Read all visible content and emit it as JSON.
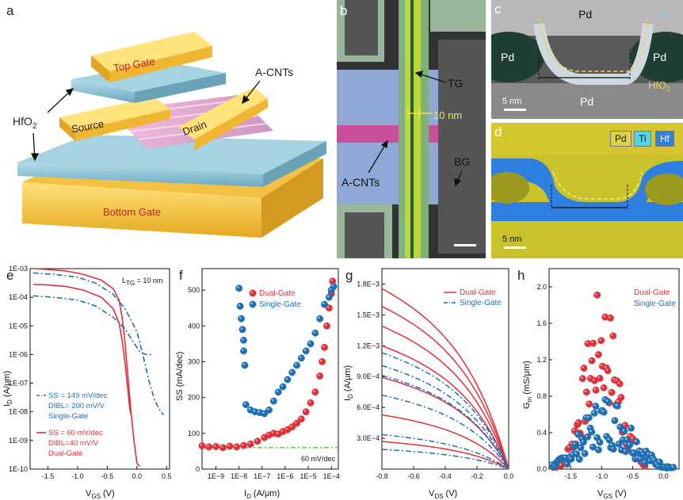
{
  "panel_letters": {
    "a": "a",
    "b": "b",
    "c": "c",
    "d": "d",
    "e": "e",
    "f": "f",
    "g": "g",
    "h": "h"
  },
  "panel_a": {
    "top_gate": "Top Gate",
    "source": "Source",
    "drain": "Drain",
    "bottom_gate": "Bottom Gate",
    "acnts": "A-CNTs",
    "hfo2_main": "HfO",
    "hfo2_sub": "2"
  },
  "panel_b": {
    "tg": "TG",
    "gap": "10 nm",
    "acnts": "A-CNTs",
    "bg": "BG"
  },
  "panel_c": {
    "pd_top": "Pd",
    "pd_left": "Pd",
    "pd_right": "Pd",
    "pd_bottom": "Pd",
    "ti": "Ti",
    "hfo2_main": "HfO",
    "hfo2_sub": "2",
    "scale": "5 nm"
  },
  "panel_d": {
    "legend_pd": "Pd",
    "legend_ti": "Ti",
    "legend_hf": "Hf",
    "scale": "5 nm"
  },
  "colors": {
    "red": "#e0303a",
    "blue": "#1f6fb5",
    "green": "#5fc24a",
    "gate_yellow": "#f5c63a",
    "hfo2_blue": "#8ec4d8"
  },
  "chart_data": [
    {
      "id": "e",
      "type": "line",
      "xlabel_main": "V",
      "xlabel_sub": "GS",
      "xlabel_unit": " (V)",
      "ylabel_main": "I",
      "ylabel_sub": "D",
      "ylabel_unit": " (A/μm)",
      "xlim": [
        -1.8,
        0.55
      ],
      "ylog": true,
      "ylim_exp": [
        -10,
        -3
      ],
      "xticks": [
        -1.5,
        -1.0,
        -0.5,
        0.0,
        0.5
      ],
      "xtick_labels": [
        "-1.5",
        "-1.0",
        "-0.5",
        "0.0",
        "0.5"
      ],
      "ytick_exp": [
        -10,
        -9,
        -8,
        -7,
        -6,
        -5,
        -4,
        -3
      ],
      "ytick_labels": [
        "1E-10",
        "1E-09",
        "1E-08",
        "1E-07",
        "1E-06",
        "1E-05",
        "1E-04",
        "1E-03"
      ],
      "annot_ltg_main": "L",
      "annot_ltg_sub": "TG",
      "annot_ltg_rest": " = 10 nm",
      "single_text": [
        "SS = 149 mV/dec",
        "DIBL= 200 mV/V",
        "Single-Gate"
      ],
      "dual_text": [
        "SS = 60 mV/dec",
        "DIBL=40 mV/V",
        "Dual-Gate"
      ],
      "series": [
        {
          "name": "Dual-Gate high VDS",
          "style": "solid",
          "color": "#e0303a",
          "x": [
            -1.75,
            -1.5,
            -1.2,
            -0.9,
            -0.6,
            -0.4,
            -0.3,
            -0.25,
            -0.2,
            -0.15,
            -0.1,
            -0.05,
            0.0,
            0.05
          ],
          "log10y": [
            -3.0,
            -3.03,
            -3.08,
            -3.2,
            -3.4,
            -3.7,
            -4.1,
            -4.7,
            -5.6,
            -6.8,
            -8.0,
            -9.0,
            -9.8,
            -9.9
          ]
        },
        {
          "name": "Dual-Gate low VDS",
          "style": "solid",
          "color": "#e0303a",
          "x": [
            -1.75,
            -1.5,
            -1.2,
            -0.9,
            -0.6,
            -0.4,
            -0.3,
            -0.25,
            -0.2,
            -0.15,
            -0.12,
            -0.1
          ],
          "log10y": [
            -3.55,
            -3.57,
            -3.62,
            -3.75,
            -4.0,
            -4.4,
            -4.9,
            -5.5,
            -6.3,
            -7.3,
            -7.9,
            -8.1
          ]
        },
        {
          "name": "Single-Gate high VDS",
          "style": "dashdot",
          "color": "#1f6fb5",
          "x": [
            -1.75,
            -1.4,
            -1.0,
            -0.7,
            -0.4,
            -0.2,
            0.0,
            0.1,
            0.2,
            0.3,
            0.4,
            0.45
          ],
          "log10y": [
            -3.15,
            -3.2,
            -3.3,
            -3.5,
            -3.9,
            -4.4,
            -5.2,
            -6.0,
            -6.9,
            -7.6,
            -8.0,
            -8.1
          ]
        },
        {
          "name": "Single-Gate low VDS",
          "style": "dashdot",
          "color": "#1f6fb5",
          "x": [
            -1.75,
            -1.4,
            -1.0,
            -0.7,
            -0.4,
            -0.2,
            -0.05,
            0.05,
            0.15,
            0.22,
            0.28
          ],
          "log10y": [
            -3.95,
            -4.0,
            -4.1,
            -4.3,
            -4.7,
            -5.1,
            -5.6,
            -5.9,
            -6.0,
            -6.0,
            -6.0
          ]
        }
      ]
    },
    {
      "id": "f",
      "type": "scatter",
      "xlabel_main": "I",
      "xlabel_sub": "D",
      "xlabel_unit": "  (A/μm)",
      "ylabel": "SS (mA/dec)",
      "xlog": true,
      "xlim_exp": [
        -9.6,
        -3.7
      ],
      "ylim": [
        0,
        560
      ],
      "xtick_exp": [
        -9,
        -8,
        -7,
        -6,
        -5,
        -4
      ],
      "xtick_labels": [
        "1E−9",
        "1E−8",
        "1E−7",
        "1E−6",
        "1E−5",
        "1E−4"
      ],
      "yticks": [
        0,
        100,
        200,
        300,
        400,
        500
      ],
      "ytick_labels": [
        "0",
        "100",
        "200",
        "300",
        "400",
        "500"
      ],
      "ref_line_value": 60,
      "ref_line_label": "60 mV/dec",
      "legend": [
        "Dual-Gate",
        "Single-Gate"
      ],
      "series": [
        {
          "name": "Dual-Gate",
          "color": "#e0303a",
          "log10x": [
            -9.6,
            -9.3,
            -9.0,
            -8.7,
            -8.4,
            -8.1,
            -7.8,
            -7.5,
            -7.2,
            -6.9,
            -6.7,
            -6.5,
            -6.3,
            -6.1,
            -5.9,
            -5.7,
            -5.5,
            -5.3,
            -5.1,
            -4.9,
            -4.7,
            -4.5,
            -4.4,
            -4.3,
            -4.2,
            -4.1,
            -4.0,
            -3.95
          ],
          "y": [
            65,
            62,
            63,
            60,
            64,
            62,
            66,
            70,
            78,
            88,
            95,
            100,
            98,
            105,
            110,
            118,
            128,
            140,
            160,
            185,
            215,
            260,
            300,
            340,
            400,
            450,
            490,
            525
          ]
        },
        {
          "name": "Single-Gate",
          "color": "#1f6fb5",
          "log10x": [
            -8.0,
            -7.95,
            -7.9,
            -7.85,
            -7.8,
            -7.8,
            -7.75,
            -7.7,
            -7.5,
            -7.3,
            -7.1,
            -6.9,
            -6.7,
            -6.5,
            -6.3,
            -6.1,
            -5.9,
            -5.7,
            -5.5,
            -5.3,
            -5.1,
            -4.9,
            -4.7,
            -4.5,
            -4.3,
            -4.1,
            -4.0,
            -3.9
          ],
          "y": [
            505,
            455,
            420,
            390,
            360,
            330,
            290,
            180,
            165,
            160,
            158,
            155,
            165,
            190,
            215,
            230,
            250,
            270,
            290,
            310,
            330,
            350,
            380,
            420,
            460,
            480,
            500,
            510
          ]
        }
      ]
    },
    {
      "id": "g",
      "type": "line",
      "xlabel_main": "V",
      "xlabel_sub": "DS",
      "xlabel_unit": " (V)",
      "ylabel_main": "I",
      "ylabel_sub": "D",
      "ylabel_unit": " (A/μm)",
      "xlim": [
        -0.8,
        0.0
      ],
      "ylim": [
        0,
        0.00195
      ],
      "xticks": [
        -0.8,
        -0.6,
        -0.4,
        -0.2,
        0.0
      ],
      "xtick_labels": [
        "-0.8",
        "-0.6",
        "-0.4",
        "-0.2",
        "0.0"
      ],
      "yticks": [
        0.0003,
        0.0006,
        0.0009,
        0.0012,
        0.0015,
        0.0018
      ],
      "ytick_labels": [
        "3.0E−4",
        "6.0E−4",
        "9.0E−4",
        "1.2E−3",
        "1.5E−3",
        "1.8E−3"
      ],
      "legend": [
        "Dual-Gate",
        "Single-Gate"
      ],
      "dual_sat": [
        0.00183,
        0.00165,
        0.00145,
        0.00125,
        0.00093,
        0.00055,
        0.00028
      ],
      "single_sat": [
        0.00118,
        0.00105,
        0.00095,
        0.00075,
        0.00035,
        0.0002
      ]
    },
    {
      "id": "h",
      "type": "scatter",
      "xlabel_main": "V",
      "xlabel_sub": "GS",
      "xlabel_unit": " (V)",
      "ylabel_main": "G",
      "ylabel_sub": "m",
      "ylabel_unit": " (mS/μm)",
      "xlim": [
        -1.85,
        0.25
      ],
      "ylim": [
        0,
        2.2
      ],
      "xticks": [
        -1.5,
        -1.0,
        -0.5,
        0.0
      ],
      "xtick_labels": [
        "-1.5",
        "-1.0",
        "-0.5",
        "0.0"
      ],
      "yticks": [
        0,
        0.4,
        0.8,
        1.2,
        1.6,
        2.0
      ],
      "ytick_labels": [
        "0.0",
        "0.4",
        "0.8",
        "1.2",
        "1.6",
        "2.0"
      ],
      "legend": [
        "Dual-Gate",
        "Single-Gate"
      ]
    }
  ]
}
